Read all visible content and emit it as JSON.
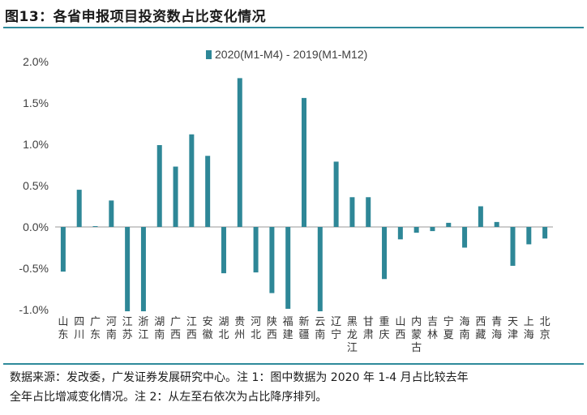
{
  "title": "图13：各省申报项目投资数占比变化情况",
  "footnote": {
    "line1": "数据来源：发改委，广发证券发展研究中心。注 1：图中数据为 2020 年 1-4 月占比较去年",
    "line2": "全年占比增减变化情况。注 2：从左至右依次为占比降序排列。"
  },
  "colors": {
    "bar": "#2e8797",
    "axis": "#999999",
    "rule": "#2f8a9b",
    "text": "#404040"
  },
  "chart_data": {
    "type": "bar",
    "legend": {
      "label": "2020(M1-M4) - 2019(M1-M12)",
      "position": "top-center"
    },
    "ylim": [
      -1.0,
      2.0
    ],
    "yticks": [
      "2.0%",
      "1.5%",
      "1.0%",
      "0.5%",
      "0.0%",
      "-0.5%",
      "-1.0%"
    ],
    "ytick_values": [
      2.0,
      1.5,
      1.0,
      0.5,
      0.0,
      -0.5,
      -1.0
    ],
    "categories": [
      "山东",
      "四川",
      "广东",
      "河南",
      "江苏",
      "浙江",
      "湖南",
      "广西",
      "江西",
      "安徽",
      "湖北",
      "贵州",
      "河北",
      "陕西",
      "福建",
      "新疆",
      "云南",
      "辽宁",
      "黑龙江",
      "甘肃",
      "重庆",
      "山西",
      "内蒙古",
      "吉林",
      "宁夏",
      "海南",
      "西藏",
      "青海",
      "天津",
      "上海",
      "北京"
    ],
    "values": [
      -0.54,
      0.45,
      0.01,
      0.32,
      -1.02,
      -1.02,
      0.99,
      0.73,
      1.12,
      0.86,
      -0.56,
      1.8,
      -0.55,
      -0.8,
      -0.99,
      1.56,
      -1.02,
      0.79,
      0.36,
      0.36,
      -0.63,
      -0.15,
      -0.07,
      -0.05,
      0.05,
      -0.25,
      0.25,
      0.06,
      -0.47,
      -0.21,
      -0.14
    ],
    "unit": "%"
  }
}
